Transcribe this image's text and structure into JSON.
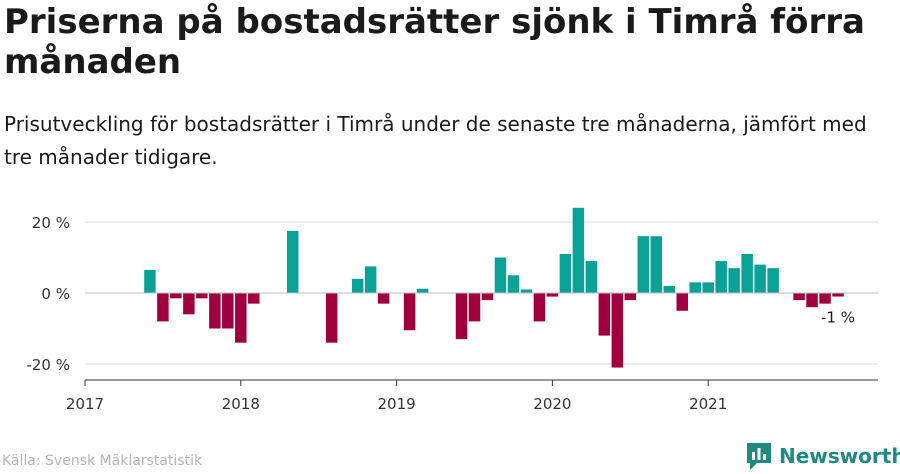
{
  "title": "Priserna på bostadsrätter sjönk i Timrå förra månaden",
  "subtitle": "Prisutveckling för bostadsrätter i Timrå under de senaste tre månaderna, jämfört med tre månader tidigare.",
  "source": "Källa: Svensk Mäklarstatistik",
  "brand": "Newsworthy",
  "colors": {
    "positive": "#0aa197",
    "negative": "#a0003e",
    "grid": "#d9d9d9",
    "axis": "#333333",
    "brand": "#1e8a80"
  },
  "chart_data": {
    "type": "bar",
    "title": "",
    "xlabel": "",
    "ylabel": "",
    "ylim": [
      -22,
      25
    ],
    "yticks": [
      20,
      0,
      -20
    ],
    "ytick_labels": [
      "20 %",
      "0 %",
      "-20 %"
    ],
    "xticks": [
      2017,
      2018,
      2019,
      2020,
      2021
    ],
    "xtick_labels": [
      "2017",
      "2018",
      "2019",
      "2020",
      "2021"
    ],
    "grid": true,
    "x": [
      "2017-06",
      "2017-07",
      "2017-08",
      "2017-09",
      "2017-10",
      "2017-11",
      "2017-12",
      "2018-01",
      "2018-02",
      "2018-03",
      "2018-04",
      "2018-05",
      "2018-06",
      "2018-07",
      "2018-08",
      "2018-09",
      "2018-10",
      "2018-11",
      "2018-12",
      "2019-01",
      "2019-02",
      "2019-03",
      "2019-04",
      "2019-05",
      "2019-06",
      "2019-07",
      "2019-08",
      "2019-09",
      "2019-10",
      "2019-11",
      "2019-12",
      "2020-01",
      "2020-02",
      "2020-03",
      "2020-04",
      "2020-05",
      "2020-06",
      "2020-07",
      "2020-08",
      "2020-09",
      "2020-10",
      "2020-11",
      "2020-12",
      "2021-01",
      "2021-02",
      "2021-03",
      "2021-04",
      "2021-05",
      "2021-06",
      "2021-07",
      "2021-08",
      "2021-09",
      "2021-10",
      "2021-11"
    ],
    "values": [
      6.5,
      -8,
      -1.5,
      -6,
      -1.5,
      -10,
      -10,
      -14,
      -3,
      null,
      null,
      17.5,
      null,
      null,
      -14,
      null,
      4,
      7.5,
      -3,
      null,
      -10.5,
      1.2,
      null,
      null,
      -13,
      -8,
      -2,
      10,
      5,
      1,
      -8,
      -1,
      11,
      24,
      9,
      -12,
      -21,
      -2,
      16,
      16,
      2,
      -5,
      3,
      3,
      9,
      7,
      11,
      8,
      7,
      null,
      -2,
      -4,
      -3,
      -1
    ],
    "annotations": [
      {
        "x": "2021-11",
        "text": "-1 %"
      }
    ]
  }
}
